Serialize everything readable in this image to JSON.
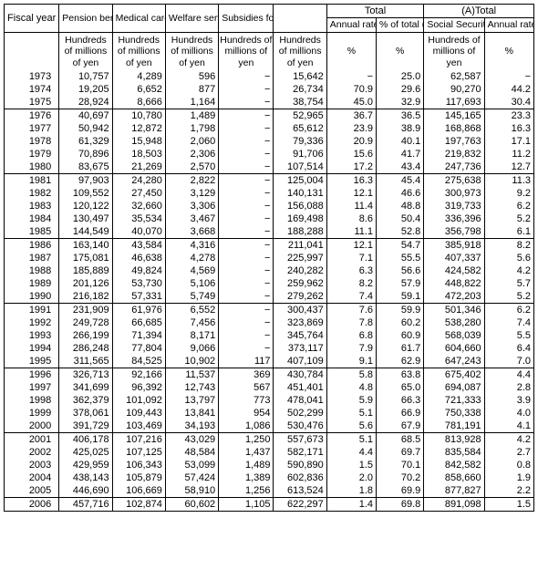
{
  "header": {
    "fiscal_year": "Fiscal year",
    "pension": "Pension benefits",
    "medical": "Medical care benefits",
    "welfare": "Welfare service benefits",
    "subsidies": "Subsidies for employees",
    "total": "Total",
    "atotal": "(A)Total",
    "annual_rate": "Annual rate of increase",
    "pct_of_total": "% of total (A)",
    "soc_sec": "Social Security Expenditure"
  },
  "units": {
    "hundreds": "Hundreds of millions of yen",
    "pct": "%"
  },
  "col_widths": {
    "year": 60,
    "pension": 58,
    "medical": 58,
    "welfare": 58,
    "subsidies": 60,
    "total": 58,
    "rate": 54,
    "pct": 52,
    "socsec": 66,
    "rate2": 54
  },
  "blocks": [
    [
      {
        "y": "1973",
        "p": "10,757",
        "m": "4,289",
        "w": "596",
        "s": "−",
        "t": "15,642",
        "r": "−",
        "pc": "25.0",
        "ss": "62,587",
        "r2": "−"
      },
      {
        "y": "1974",
        "p": "19,205",
        "m": "6,652",
        "w": "877",
        "s": "−",
        "t": "26,734",
        "r": "70.9",
        "pc": "29.6",
        "ss": "90,270",
        "r2": "44.2"
      },
      {
        "y": "1975",
        "p": "28,924",
        "m": "8,666",
        "w": "1,164",
        "s": "−",
        "t": "38,754",
        "r": "45.0",
        "pc": "32.9",
        "ss": "117,693",
        "r2": "30.4"
      }
    ],
    [
      {
        "y": "1976",
        "p": "40,697",
        "m": "10,780",
        "w": "1,489",
        "s": "−",
        "t": "52,965",
        "r": "36.7",
        "pc": "36.5",
        "ss": "145,165",
        "r2": "23.3"
      },
      {
        "y": "1977",
        "p": "50,942",
        "m": "12,872",
        "w": "1,798",
        "s": "−",
        "t": "65,612",
        "r": "23.9",
        "pc": "38.9",
        "ss": "168,868",
        "r2": "16.3"
      },
      {
        "y": "1978",
        "p": "61,329",
        "m": "15,948",
        "w": "2,060",
        "s": "−",
        "t": "79,336",
        "r": "20.9",
        "pc": "40.1",
        "ss": "197,763",
        "r2": "17.1"
      },
      {
        "y": "1979",
        "p": "70,896",
        "m": "18,503",
        "w": "2,306",
        "s": "−",
        "t": "91,706",
        "r": "15.6",
        "pc": "41.7",
        "ss": "219,832",
        "r2": "11.2"
      },
      {
        "y": "1980",
        "p": "83,675",
        "m": "21,269",
        "w": "2,570",
        "s": "−",
        "t": "107,514",
        "r": "17.2",
        "pc": "43.4",
        "ss": "247,736",
        "r2": "12.7"
      }
    ],
    [
      {
        "y": "1981",
        "p": "97,903",
        "m": "24,280",
        "w": "2,822",
        "s": "−",
        "t": "125,004",
        "r": "16.3",
        "pc": "45.4",
        "ss": "275,638",
        "r2": "11.3"
      },
      {
        "y": "1982",
        "p": "109,552",
        "m": "27,450",
        "w": "3,129",
        "s": "−",
        "t": "140,131",
        "r": "12.1",
        "pc": "46.6",
        "ss": "300,973",
        "r2": "9.2"
      },
      {
        "y": "1983",
        "p": "120,122",
        "m": "32,660",
        "w": "3,306",
        "s": "−",
        "t": "156,088",
        "r": "11.4",
        "pc": "48.8",
        "ss": "319,733",
        "r2": "6.2"
      },
      {
        "y": "1984",
        "p": "130,497",
        "m": "35,534",
        "w": "3,467",
        "s": "−",
        "t": "169,498",
        "r": "8.6",
        "pc": "50.4",
        "ss": "336,396",
        "r2": "5.2"
      },
      {
        "y": "1985",
        "p": "144,549",
        "m": "40,070",
        "w": "3,668",
        "s": "−",
        "t": "188,288",
        "r": "11.1",
        "pc": "52.8",
        "ss": "356,798",
        "r2": "6.1"
      }
    ],
    [
      {
        "y": "1986",
        "p": "163,140",
        "m": "43,584",
        "w": "4,316",
        "s": "−",
        "t": "211,041",
        "r": "12.1",
        "pc": "54.7",
        "ss": "385,918",
        "r2": "8.2"
      },
      {
        "y": "1987",
        "p": "175,081",
        "m": "46,638",
        "w": "4,278",
        "s": "−",
        "t": "225,997",
        "r": "7.1",
        "pc": "55.5",
        "ss": "407,337",
        "r2": "5.6"
      },
      {
        "y": "1988",
        "p": "185,889",
        "m": "49,824",
        "w": "4,569",
        "s": "−",
        "t": "240,282",
        "r": "6.3",
        "pc": "56.6",
        "ss": "424,582",
        "r2": "4.2"
      },
      {
        "y": "1989",
        "p": "201,126",
        "m": "53,730",
        "w": "5,106",
        "s": "−",
        "t": "259,962",
        "r": "8.2",
        "pc": "57.9",
        "ss": "448,822",
        "r2": "5.7"
      },
      {
        "y": "1990",
        "p": "216,182",
        "m": "57,331",
        "w": "5,749",
        "s": "−",
        "t": "279,262",
        "r": "7.4",
        "pc": "59.1",
        "ss": "472,203",
        "r2": "5.2"
      }
    ],
    [
      {
        "y": "1991",
        "p": "231,909",
        "m": "61,976",
        "w": "6,552",
        "s": "−",
        "t": "300,437",
        "r": "7.6",
        "pc": "59.9",
        "ss": "501,346",
        "r2": "6.2"
      },
      {
        "y": "1992",
        "p": "249,728",
        "m": "66,685",
        "w": "7,456",
        "s": "−",
        "t": "323,869",
        "r": "7.8",
        "pc": "60.2",
        "ss": "538,280",
        "r2": "7.4"
      },
      {
        "y": "1993",
        "p": "266,199",
        "m": "71,394",
        "w": "8,171",
        "s": "−",
        "t": "345,764",
        "r": "6.8",
        "pc": "60.9",
        "ss": "568,039",
        "r2": "5.5"
      },
      {
        "y": "1994",
        "p": "286,248",
        "m": "77,804",
        "w": "9,066",
        "s": "−",
        "t": "373,117",
        "r": "7.9",
        "pc": "61.7",
        "ss": "604,660",
        "r2": "6.4"
      },
      {
        "y": "1995",
        "p": "311,565",
        "m": "84,525",
        "w": "10,902",
        "s": "117",
        "t": "407,109",
        "r": "9.1",
        "pc": "62.9",
        "ss": "647,243",
        "r2": "7.0"
      }
    ],
    [
      {
        "y": "1996",
        "p": "326,713",
        "m": "92,166",
        "w": "11,537",
        "s": "369",
        "t": "430,784",
        "r": "5.8",
        "pc": "63.8",
        "ss": "675,402",
        "r2": "4.4"
      },
      {
        "y": "1997",
        "p": "341,699",
        "m": "96,392",
        "w": "12,743",
        "s": "567",
        "t": "451,401",
        "r": "4.8",
        "pc": "65.0",
        "ss": "694,087",
        "r2": "2.8"
      },
      {
        "y": "1998",
        "p": "362,379",
        "m": "101,092",
        "w": "13,797",
        "s": "773",
        "t": "478,041",
        "r": "5.9",
        "pc": "66.3",
        "ss": "721,333",
        "r2": "3.9"
      },
      {
        "y": "1999",
        "p": "378,061",
        "m": "109,443",
        "w": "13,841",
        "s": "954",
        "t": "502,299",
        "r": "5.1",
        "pc": "66.9",
        "ss": "750,338",
        "r2": "4.0"
      },
      {
        "y": "2000",
        "p": "391,729",
        "m": "103,469",
        "w": "34,193",
        "s": "1,086",
        "t": "530,476",
        "r": "5.6",
        "pc": "67.9",
        "ss": "781,191",
        "r2": "4.1"
      }
    ],
    [
      {
        "y": "2001",
        "p": "406,178",
        "m": "107,216",
        "w": "43,029",
        "s": "1,250",
        "t": "557,673",
        "r": "5.1",
        "pc": "68.5",
        "ss": "813,928",
        "r2": "4.2"
      },
      {
        "y": "2002",
        "p": "425,025",
        "m": "107,125",
        "w": "48,584",
        "s": "1,437",
        "t": "582,171",
        "r": "4.4",
        "pc": "69.7",
        "ss": "835,584",
        "r2": "2.7"
      },
      {
        "y": "2003",
        "p": "429,959",
        "m": "106,343",
        "w": "53,099",
        "s": "1,489",
        "t": "590,890",
        "r": "1.5",
        "pc": "70.1",
        "ss": "842,582",
        "r2": "0.8"
      },
      {
        "y": "2004",
        "p": "438,143",
        "m": "105,879",
        "w": "57,424",
        "s": "1,389",
        "t": "602,836",
        "r": "2.0",
        "pc": "70.2",
        "ss": "858,660",
        "r2": "1.9"
      },
      {
        "y": "2005",
        "p": "446,690",
        "m": "106,669",
        "w": "58,910",
        "s": "1,256",
        "t": "613,524",
        "r": "1.8",
        "pc": "69.9",
        "ss": "877,827",
        "r2": "2.2"
      }
    ],
    [
      {
        "y": "2006",
        "p": "457,716",
        "m": "102,874",
        "w": "60,602",
        "s": "1,105",
        "t": "622,297",
        "r": "1.4",
        "pc": "69.8",
        "ss": "891,098",
        "r2": "1.5"
      }
    ]
  ]
}
